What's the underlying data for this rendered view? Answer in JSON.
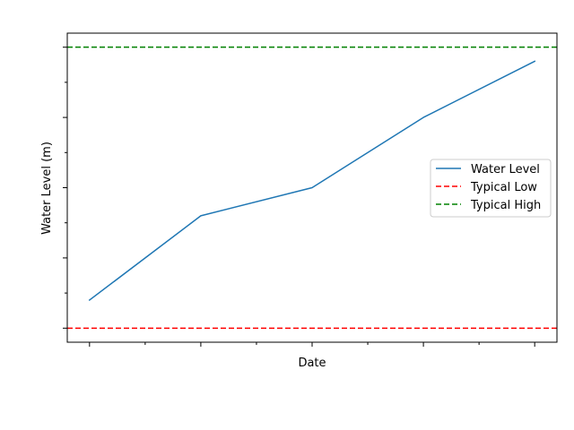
{
  "chart_data": {
    "type": "line",
    "title": "",
    "xlabel": "Date",
    "ylabel": "Water Level (m)",
    "x": [
      0,
      1,
      2,
      3,
      4
    ],
    "xlim": [
      -0.2,
      4.2
    ],
    "ylim": [
      -0.2,
      4.2
    ],
    "x_tick_labels_visible": false,
    "y_tick_labels_visible": false,
    "series": [
      {
        "name": "Water Level",
        "values": [
          0.4,
          1.6,
          2.0,
          3.0,
          3.8
        ],
        "color": "#1f77b4",
        "style": "solid"
      }
    ],
    "reference_lines": [
      {
        "name": "Typical Low",
        "y": 0.0,
        "color": "#ff0000",
        "style": "dashed"
      },
      {
        "name": "Typical High",
        "y": 4.0,
        "color": "#008000",
        "style": "dashed"
      }
    ],
    "legend": {
      "placement": "center-right",
      "entries": [
        "Water Level",
        "Typical Low",
        "Typical High"
      ]
    },
    "grid": false
  }
}
